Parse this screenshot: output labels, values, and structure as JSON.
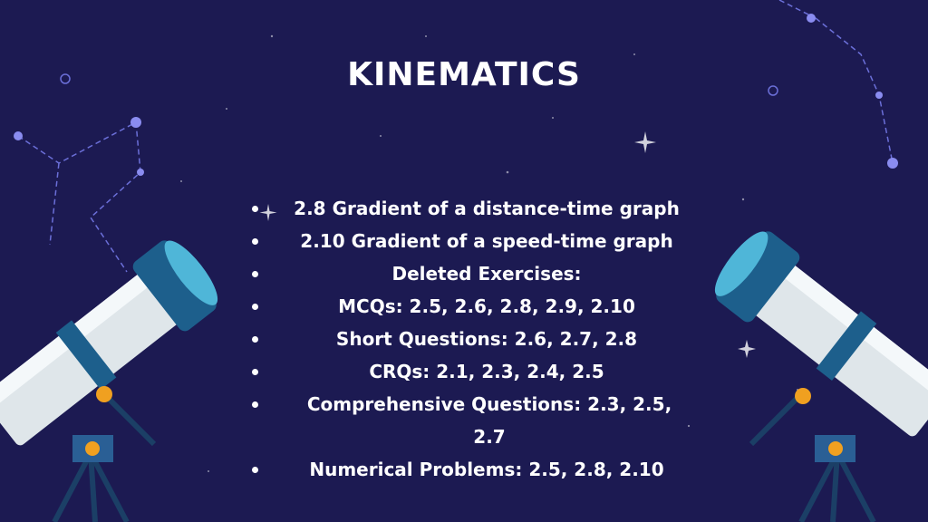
{
  "slide": {
    "title": "KINEMATICS",
    "bullets": [
      "2.8 Gradient of a distance-time graph",
      "2.10 Gradient of a speed-time graph",
      "Deleted Exercises:",
      "MCQs: 2.5, 2.6, 2.8, 2.9, 2.10",
      "Short Questions: 2.6, 2.7, 2.8",
      "CRQs: 2.1, 2.3, 2.4, 2.5",
      "Comprehensive Questions: 2.3, 2.5, 2.7",
      "Numerical Problems: 2.5, 2.8, 2.10"
    ]
  },
  "colors": {
    "background": "#1c1a52",
    "text": "#ffffff",
    "telescope_tube": "#dfe6ea",
    "telescope_accent": "#1d5f8c",
    "knob": "#f0a020"
  },
  "icons": [
    "telescope-left",
    "telescope-right",
    "constellation",
    "star"
  ]
}
